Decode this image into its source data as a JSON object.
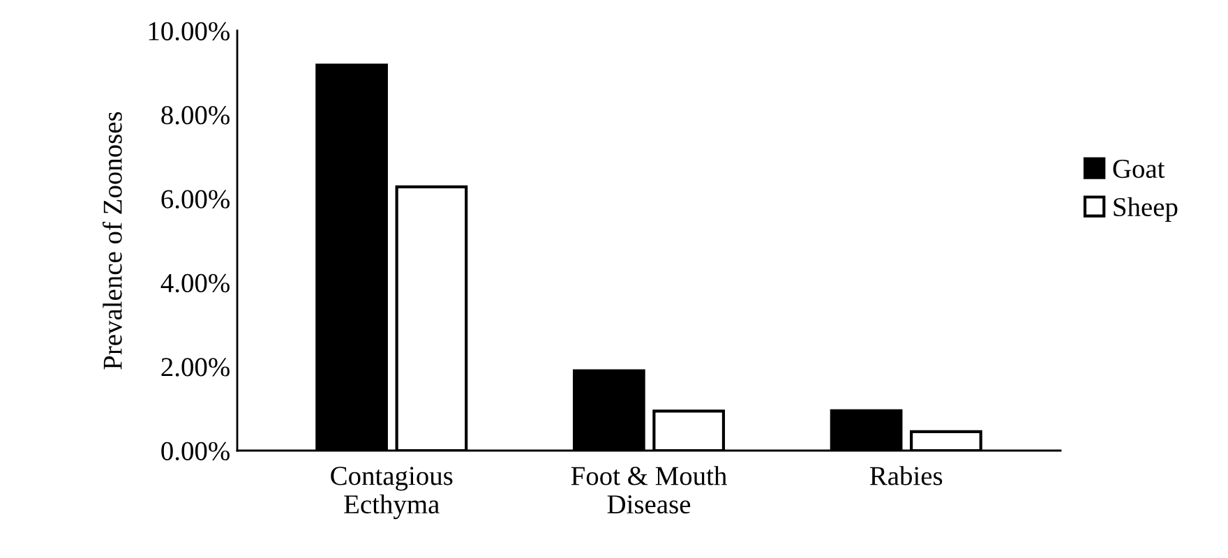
{
  "chart_data": {
    "type": "bar",
    "ylabel": "Prevalence of Zoonoses",
    "categories": [
      "Contagious\nEcthyma",
      "Foot & Mouth\nDisease",
      "Rabies"
    ],
    "series": [
      {
        "name": "Goat",
        "color": "#000000",
        "values": [
          9.18,
          1.9,
          0.95
        ]
      },
      {
        "name": "Sheep",
        "color": "#ffffff",
        "values": [
          6.28,
          0.94,
          0.45
        ]
      }
    ],
    "ylim": [
      0,
      10
    ],
    "yticks": [
      {
        "value": 0,
        "label": "0.00%"
      },
      {
        "value": 2,
        "label": "2.00%"
      },
      {
        "value": 4,
        "label": "4.00%"
      },
      {
        "value": 6,
        "label": "6.00%"
      },
      {
        "value": 8,
        "label": "8.00%"
      },
      {
        "value": 10,
        "label": "10.00%"
      }
    ],
    "grid": false,
    "legend": "right"
  }
}
